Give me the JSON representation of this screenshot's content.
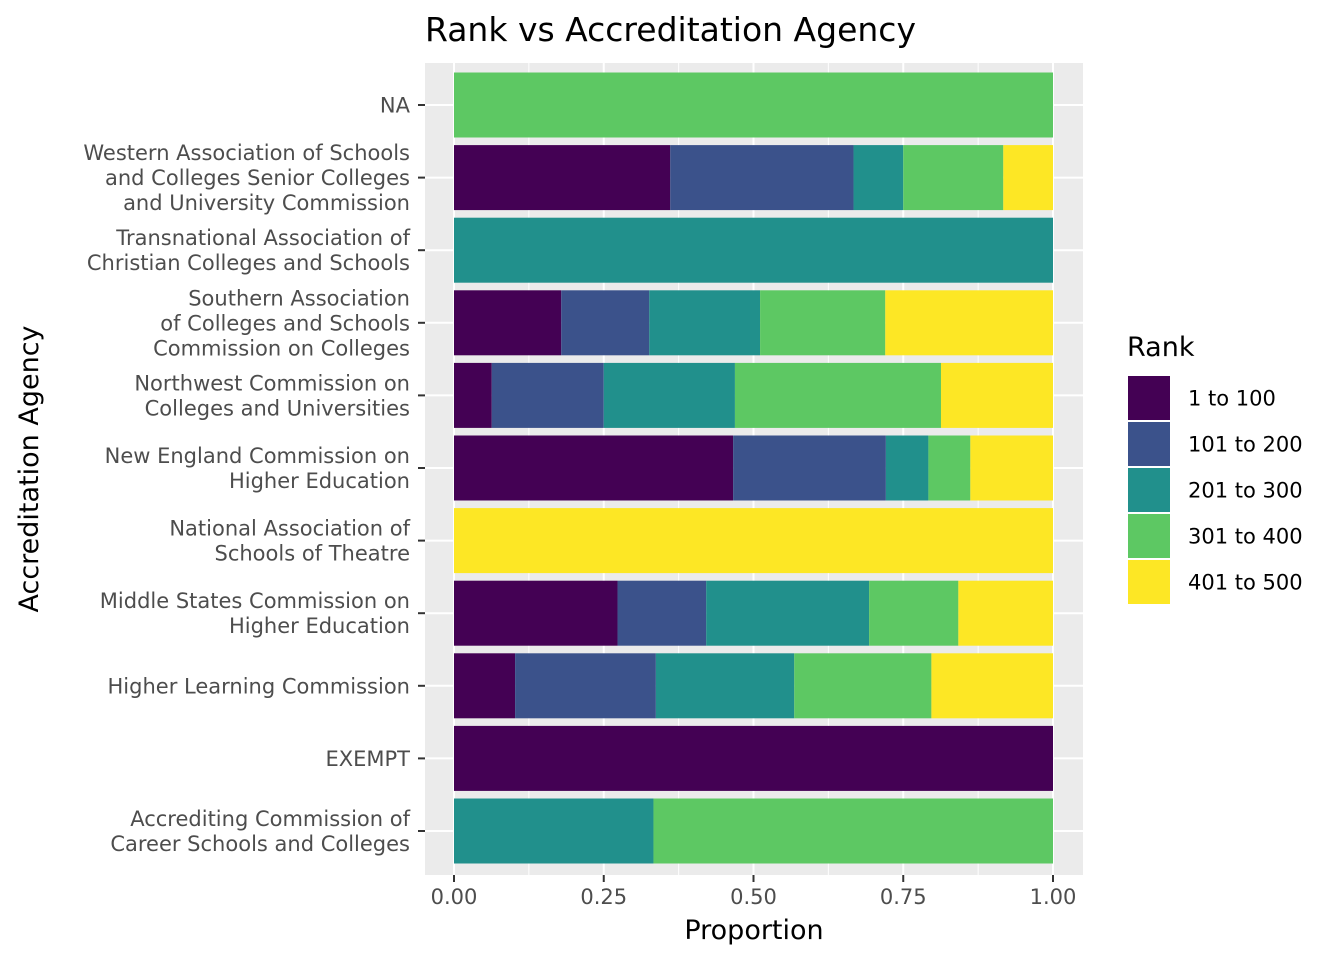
{
  "chart_data": {
    "type": "bar",
    "orientation": "horizontal",
    "stacked": true,
    "title": "Rank vs Accreditation Agency",
    "xlabel": "Proportion",
    "ylabel": "Accreditation Agency",
    "xlim": [
      0,
      1
    ],
    "x_ticks": [
      "0.00",
      "0.25",
      "0.50",
      "0.75",
      "1.00"
    ],
    "grid": true,
    "legend_position": "right",
    "legend_title": "Rank",
    "categories": [
      "NA",
      "Western Association of Schools and Colleges Senior Colleges and University Commission",
      "Transnational Association of Christian Colleges and Schools",
      "Southern Association of Colleges and Schools Commission on Colleges",
      "Northwest Commission on Colleges and Universities",
      "New England Commission on Higher Education",
      "National Association of Schools of Theatre",
      "Middle States Commission on Higher Education",
      "Higher Learning Commission",
      "EXEMPT",
      "Accrediting Commission of Career Schools and Colleges"
    ],
    "category_lines": [
      [
        "NA"
      ],
      [
        "Western Association of Schools",
        "and Colleges Senior Colleges",
        "and University Commission"
      ],
      [
        "Transnational Association of",
        "Christian Colleges and Schools"
      ],
      [
        "Southern Association",
        "of Colleges and Schools",
        "Commission on Colleges"
      ],
      [
        "Northwest Commission on",
        "Colleges and Universities"
      ],
      [
        "New England Commission on",
        "Higher Education"
      ],
      [
        "National Association of",
        "Schools of Theatre"
      ],
      [
        "Middle States Commission on",
        "Higher Education"
      ],
      [
        "Higher Learning Commission"
      ],
      [
        "EXEMPT"
      ],
      [
        "Accrediting Commission of",
        "Career Schools and Colleges"
      ]
    ],
    "series": [
      {
        "name": "1 to 100",
        "color": "#440154",
        "values": [
          0,
          0.361,
          0,
          0.179,
          0.063,
          0.466,
          0,
          0.273,
          0.102,
          1,
          0
        ]
      },
      {
        "name": "101 to 200",
        "color": "#3B528B",
        "values": [
          0,
          0.306,
          0,
          0.147,
          0.187,
          0.255,
          0,
          0.148,
          0.235,
          0,
          0
        ]
      },
      {
        "name": "201 to 300",
        "color": "#21908C",
        "values": [
          0,
          0.083,
          1,
          0.185,
          0.219,
          0.071,
          0,
          0.272,
          0.231,
          0,
          0.333
        ]
      },
      {
        "name": "301 to 400",
        "color": "#5DC863",
        "values": [
          1,
          0.167,
          0,
          0.209,
          0.344,
          0.07,
          0,
          0.149,
          0.229,
          0,
          0.667
        ]
      },
      {
        "name": "401 to 500",
        "color": "#FDE725",
        "values": [
          0,
          0.083,
          0,
          0.28,
          0.187,
          0.138,
          1,
          0.158,
          0.203,
          0,
          0
        ]
      }
    ]
  }
}
